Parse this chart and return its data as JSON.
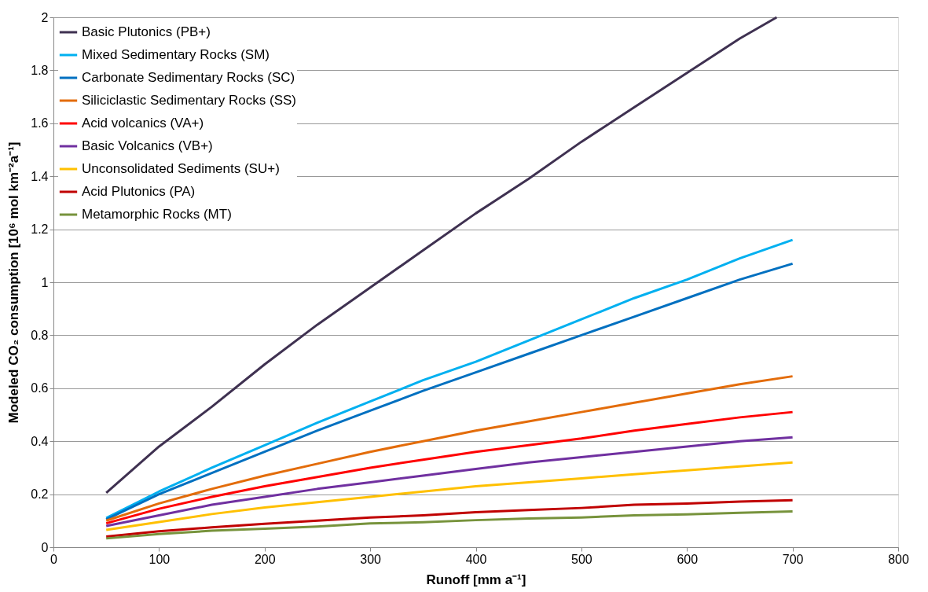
{
  "chart_data": {
    "type": "line",
    "xlabel": "Runoff [mm a⁻¹]",
    "ylabel": "Modeled CO₂ consumption [10⁶ mol km⁻²a⁻¹]",
    "x": [
      50,
      100,
      150,
      200,
      250,
      300,
      350,
      400,
      450,
      500,
      550,
      600,
      650,
      700
    ],
    "series": [
      {
        "name": "Basic Plutonics (PB+)",
        "color": "#3f3151",
        "x": [
          50,
          100,
          150,
          200,
          250,
          300,
          350,
          400,
          450,
          500,
          550,
          600,
          650,
          685
        ],
        "values": [
          0.205,
          0.38,
          0.53,
          0.69,
          0.84,
          0.98,
          1.12,
          1.26,
          1.39,
          1.53,
          1.66,
          1.79,
          1.92,
          2.0
        ]
      },
      {
        "name": "Mixed Sedimentary Rocks (SM)",
        "color": "#00b0f0",
        "values": [
          0.11,
          0.21,
          0.3,
          0.385,
          0.47,
          0.55,
          0.63,
          0.7,
          0.78,
          0.86,
          0.94,
          1.01,
          1.09,
          1.16
        ]
      },
      {
        "name": "Carbonate Sedimentary Rocks (SC)",
        "color": "#0070c0",
        "values": [
          0.105,
          0.2,
          0.28,
          0.36,
          0.44,
          0.515,
          0.59,
          0.66,
          0.73,
          0.8,
          0.87,
          0.94,
          1.01,
          1.07
        ]
      },
      {
        "name": "Siliciclastic Sedimentary Rocks (SS)",
        "color": "#e36c0a",
        "values": [
          0.1,
          0.165,
          0.22,
          0.27,
          0.315,
          0.36,
          0.4,
          0.44,
          0.475,
          0.51,
          0.545,
          0.58,
          0.615,
          0.645
        ]
      },
      {
        "name": "Acid volcanics (VA+)",
        "color": "#ff0000",
        "values": [
          0.09,
          0.145,
          0.19,
          0.23,
          0.265,
          0.3,
          0.33,
          0.36,
          0.385,
          0.41,
          0.44,
          0.465,
          0.49,
          0.51
        ]
      },
      {
        "name": "Basic Volcanics (VB+)",
        "color": "#7030a0",
        "values": [
          0.08,
          0.12,
          0.16,
          0.19,
          0.22,
          0.245,
          0.27,
          0.295,
          0.32,
          0.34,
          0.36,
          0.38,
          0.4,
          0.415
        ]
      },
      {
        "name": "Unconsolidated Sediments (SU+)",
        "color": "#ffc000",
        "values": [
          0.065,
          0.095,
          0.125,
          0.15,
          0.17,
          0.19,
          0.21,
          0.23,
          0.245,
          0.26,
          0.275,
          0.29,
          0.305,
          0.32
        ]
      },
      {
        "name": "Acid Plutonics (PA)",
        "color": "#c00000",
        "values": [
          0.04,
          0.06,
          0.075,
          0.088,
          0.1,
          0.112,
          0.12,
          0.132,
          0.14,
          0.148,
          0.16,
          0.165,
          0.172,
          0.177
        ]
      },
      {
        "name": "Metamorphic Rocks (MT)",
        "color": "#77933c",
        "values": [
          0.033,
          0.05,
          0.062,
          0.07,
          0.078,
          0.09,
          0.094,
          0.102,
          0.108,
          0.112,
          0.12,
          0.124,
          0.13,
          0.135
        ]
      }
    ],
    "xlim": [
      0,
      800
    ],
    "xticks": [
      0,
      100,
      200,
      300,
      400,
      500,
      600,
      700,
      800
    ],
    "ylim": [
      0,
      2
    ],
    "yticks": [
      0,
      0.2,
      0.4,
      0.6,
      0.8,
      1,
      1.2,
      1.4,
      1.6,
      1.8,
      2
    ],
    "grid": "y",
    "legend": "top left",
    "marker": "none",
    "line_style": "solid"
  }
}
